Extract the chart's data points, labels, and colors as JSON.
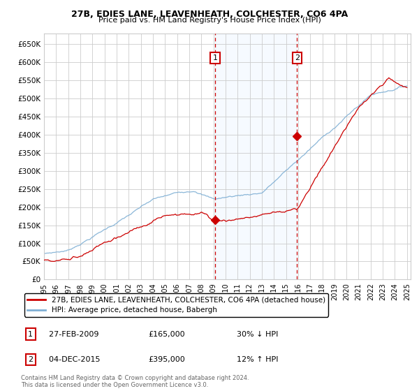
{
  "title1": "27B, EDIES LANE, LEAVENHEATH, COLCHESTER, CO6 4PA",
  "title2": "Price paid vs. HM Land Registry's House Price Index (HPI)",
  "ylim": [
    0,
    680000
  ],
  "yticks": [
    0,
    50000,
    100000,
    150000,
    200000,
    250000,
    300000,
    350000,
    400000,
    450000,
    500000,
    550000,
    600000,
    650000
  ],
  "ytick_labels": [
    "£0",
    "£50K",
    "£100K",
    "£150K",
    "£200K",
    "£250K",
    "£300K",
    "£350K",
    "£400K",
    "£450K",
    "£500K",
    "£550K",
    "£600K",
    "£650K"
  ],
  "sale1_date": 2009.15,
  "sale1_price": 165000,
  "sale1_label": "27-FEB-2009",
  "sale1_amount": "£165,000",
  "sale1_pct": "30% ↓ HPI",
  "sale2_date": 2015.92,
  "sale2_price": 395000,
  "sale2_label": "04-DEC-2015",
  "sale2_amount": "£395,000",
  "sale2_pct": "12% ↑ HPI",
  "legend_line1": "27B, EDIES LANE, LEAVENHEATH, COLCHESTER, CO6 4PA (detached house)",
  "legend_line2": "HPI: Average price, detached house, Babergh",
  "footer1": "Contains HM Land Registry data © Crown copyright and database right 2024.",
  "footer2": "This data is licensed under the Open Government Licence v3.0.",
  "hpi_color": "#7fafd4",
  "price_color": "#cc0000",
  "bg_color": "#ffffff",
  "grid_color": "#cccccc",
  "shade_color": "#ddeeff",
  "annotation_box_color": "#cc0000"
}
